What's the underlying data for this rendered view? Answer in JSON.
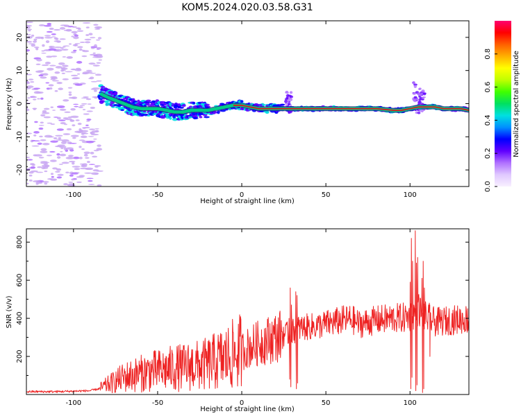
{
  "title": "KOM5.2024.020.03.58.G31",
  "colors": {
    "snr_line": "#ee2222",
    "ridge_core": "#cc2222",
    "ridge_halo": "#00cc88",
    "noise": "#c9a8f2",
    "colormap": [
      "#f8f0ff",
      "#e0c8ff",
      "#b070ff",
      "#6000ff",
      "#0000ff",
      "#0090ff",
      "#00e0e0",
      "#00e060",
      "#40ff00",
      "#c0ff00",
      "#ffff00",
      "#ffb000",
      "#ff6000",
      "#ff0000",
      "#ff0070"
    ]
  },
  "chart_data": [
    {
      "type": "heatmap",
      "title": "",
      "xlabel": "Height of straight line (km)",
      "ylabel": "Frequency (Hz)",
      "xlim": [
        -128,
        135
      ],
      "ylim": [
        -25,
        25
      ],
      "xticks": [
        -100,
        -50,
        0,
        50,
        100
      ],
      "yticks": [
        -20,
        -10,
        0,
        10,
        20
      ],
      "grid": false,
      "colorbar": {
        "label": "Normalized spectral amplitude",
        "range": [
          0,
          1
        ],
        "ticks": [
          "0.0",
          "0.2",
          "0.4",
          "0.6",
          "0.8"
        ],
        "tick_values": [
          0.0,
          0.2,
          0.4,
          0.6,
          0.8
        ]
      },
      "ridge": {
        "x": [
          -84,
          -80,
          -75,
          -70,
          -65,
          -60,
          -55,
          -50,
          -45,
          -40,
          -35,
          -30,
          -25,
          -20,
          -15,
          -10,
          -5,
          0,
          5,
          10,
          15,
          20,
          25,
          30,
          40,
          50,
          60,
          70,
          80,
          90,
          95,
          100,
          105,
          110,
          115,
          120,
          125,
          130,
          135
        ],
        "y": [
          3,
          2,
          1,
          0,
          -1,
          -1.5,
          -1.5,
          -1.5,
          -2,
          -2.5,
          -2.5,
          -2,
          -2,
          -2,
          -1.5,
          -1,
          -0.5,
          -0.5,
          -1,
          -1.5,
          -1.5,
          -1.5,
          -1.5,
          -1.5,
          -1.5,
          -1.5,
          -1.5,
          -1.5,
          -1.5,
          -2,
          -2,
          -1.5,
          -1,
          -1,
          -1,
          -1.5,
          -1.5,
          -1.5,
          -2
        ]
      },
      "noise_region": [
        -128,
        -84
      ]
    },
    {
      "type": "line",
      "title": "",
      "xlabel": "Height of straight line (km)",
      "ylabel": "SNR (v/v)",
      "xlim": [
        -128,
        135
      ],
      "ylim": [
        0,
        870
      ],
      "xticks": [
        -100,
        -50,
        0,
        50,
        100
      ],
      "yticks": [
        200,
        400,
        600,
        800
      ],
      "grid": false,
      "series": [
        {
          "x": [
            -128,
            -110,
            -90,
            -85,
            -80,
            -75,
            -70,
            -65,
            -60,
            -55,
            -50,
            -45,
            -40,
            -35,
            -30,
            -25,
            -20,
            -15,
            -10,
            -5,
            0,
            5,
            10,
            15,
            20,
            25,
            28,
            30,
            32,
            35,
            40,
            45,
            50,
            55,
            60,
            65,
            70,
            75,
            80,
            85,
            90,
            95,
            100,
            103,
            105,
            108,
            110,
            113,
            115,
            120,
            125,
            130,
            135
          ],
          "values": [
            15,
            15,
            20,
            30,
            50,
            70,
            90,
            100,
            110,
            120,
            125,
            130,
            140,
            140,
            150,
            150,
            160,
            175,
            190,
            210,
            230,
            250,
            270,
            285,
            300,
            315,
            320,
            330,
            340,
            350,
            355,
            360,
            370,
            380,
            390,
            395,
            370,
            380,
            390,
            395,
            400,
            400,
            410,
            430,
            450,
            420,
            400,
            390,
            380,
            385,
            390,
            395,
            395
          ]
        }
      ],
      "spikes": [
        {
          "x": 29,
          "values": [
            400,
            80,
            560,
            40,
            470
          ]
        },
        {
          "x": 33,
          "values": [
            540,
            30,
            520,
            60,
            400
          ]
        },
        {
          "x": 101,
          "values": [
            590,
            30,
            820,
            90,
            700
          ]
        },
        {
          "x": 104,
          "values": [
            860,
            20,
            690,
            50,
            720
          ]
        },
        {
          "x": 108,
          "values": [
            610,
            10,
            700,
            30,
            560
          ]
        },
        {
          "x": 112,
          "values": [
            480,
            200,
            430
          ]
        }
      ]
    }
  ]
}
